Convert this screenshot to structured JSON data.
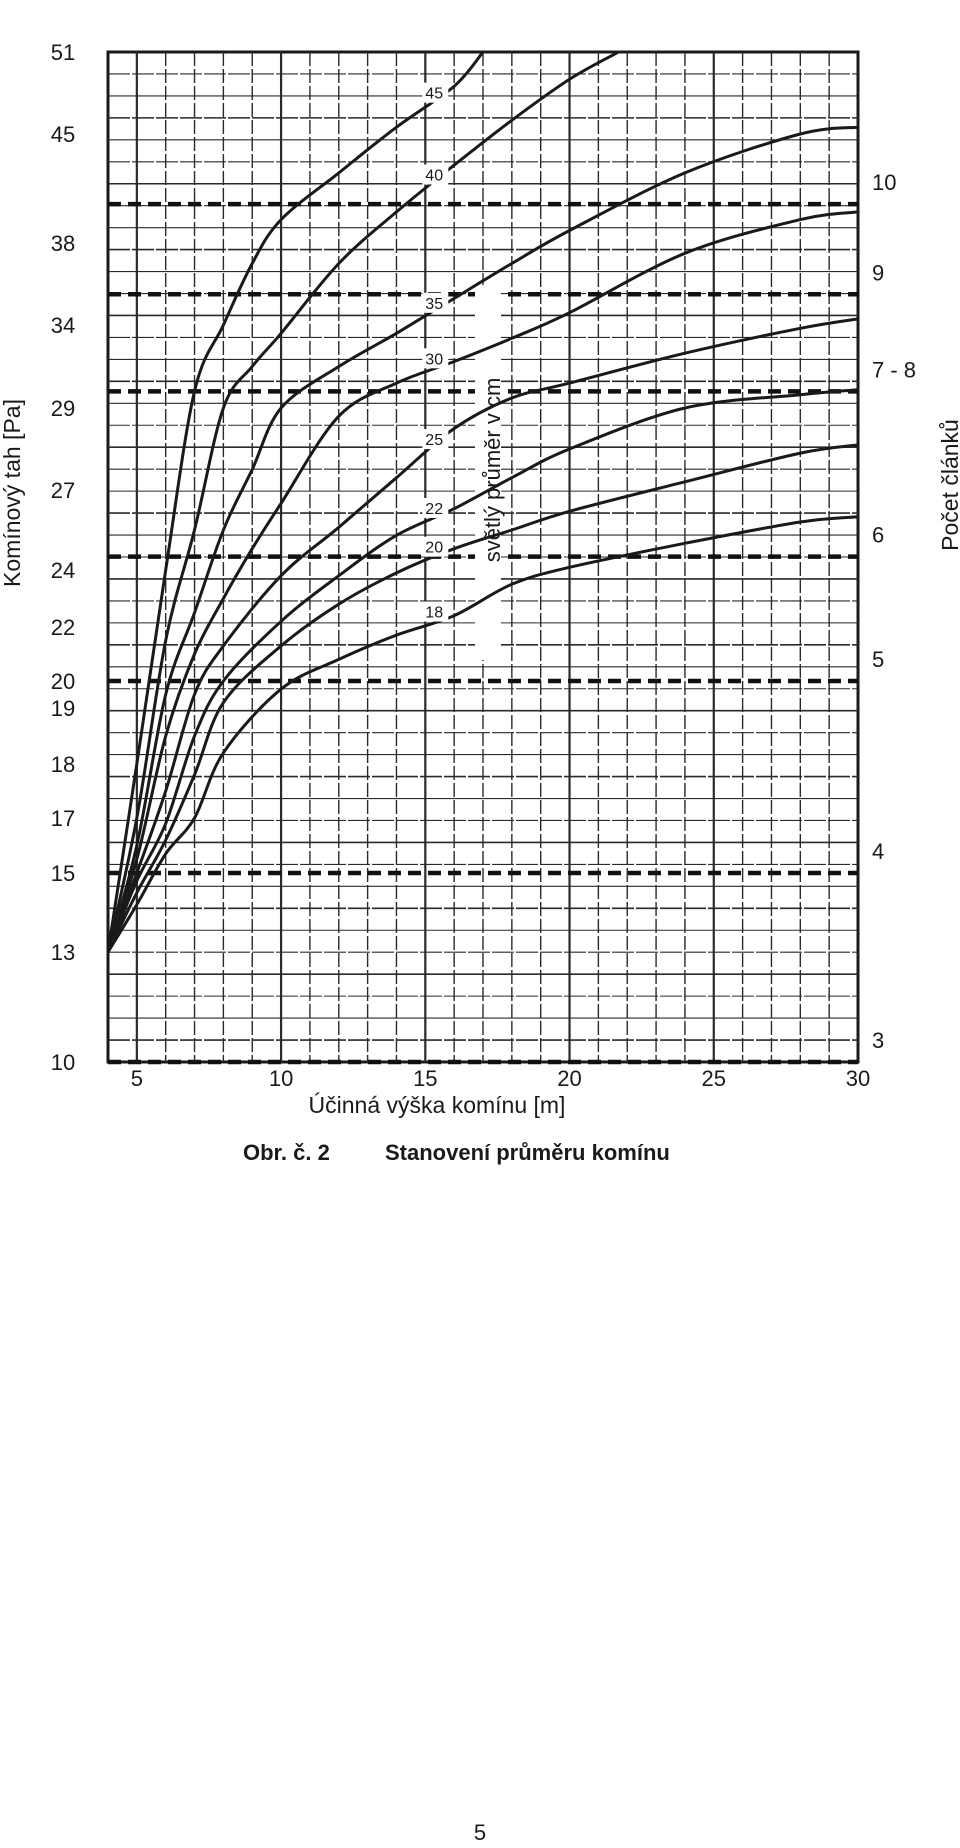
{
  "chart_data": {
    "type": "line",
    "xlabel": "Účinná výška komínu [m]",
    "ylabel": "Komínový tah [Pa]",
    "right_label": "Počet článků",
    "series_group_label": "světlý průměr v cm",
    "xlim": [
      4,
      30
    ],
    "x_ticks": [
      5,
      10,
      15,
      20,
      25,
      30
    ],
    "y_ticks": [
      10,
      13,
      15,
      17,
      18,
      19,
      20,
      22,
      24,
      27,
      29,
      34,
      38,
      45,
      51
    ],
    "grid": true,
    "series": [
      {
        "name": "45",
        "points": [
          [
            4,
            13
          ],
          [
            5,
            18
          ],
          [
            6,
            24
          ],
          [
            7,
            30
          ],
          [
            8,
            34
          ],
          [
            9,
            37
          ],
          [
            10,
            39.5
          ],
          [
            12,
            42.5
          ],
          [
            14,
            45.5
          ],
          [
            16,
            48.5
          ],
          [
            17,
            51
          ]
        ]
      },
      {
        "name": "40",
        "points": [
          [
            4,
            13
          ],
          [
            5,
            17
          ],
          [
            6,
            21.5
          ],
          [
            7,
            25.5
          ],
          [
            8,
            29
          ],
          [
            9,
            31.5
          ],
          [
            10,
            33.5
          ],
          [
            12,
            37
          ],
          [
            14,
            40
          ],
          [
            16,
            43
          ],
          [
            18,
            46
          ],
          [
            20,
            49
          ],
          [
            21.7,
            51
          ]
        ]
      },
      {
        "name": "35",
        "points": [
          [
            4,
            13
          ],
          [
            5,
            16
          ],
          [
            6,
            19.5
          ],
          [
            7,
            22.5
          ],
          [
            8,
            25.5
          ],
          [
            9,
            27.5
          ],
          [
            10,
            29
          ],
          [
            12,
            31.5
          ],
          [
            14,
            33.5
          ],
          [
            16,
            35.3
          ],
          [
            18,
            37
          ],
          [
            20,
            38.8
          ],
          [
            24,
            42.5
          ],
          [
            28,
            45
          ],
          [
            30,
            45.5
          ]
        ]
      },
      {
        "name": "30",
        "points": [
          [
            4,
            13
          ],
          [
            5,
            15.5
          ],
          [
            6,
            18.5
          ],
          [
            7,
            21
          ],
          [
            8,
            23
          ],
          [
            9,
            24.8
          ],
          [
            10,
            26.5
          ],
          [
            12,
            28.8
          ],
          [
            14,
            30.5
          ],
          [
            16,
            31.8
          ],
          [
            18,
            33.2
          ],
          [
            20,
            34.6
          ],
          [
            24,
            37.5
          ],
          [
            28,
            39.5
          ],
          [
            30,
            40
          ]
        ]
      },
      {
        "name": "25",
        "points": [
          [
            4,
            13
          ],
          [
            5,
            15
          ],
          [
            6,
            17.5
          ],
          [
            7,
            19.5
          ],
          [
            8,
            21.3
          ],
          [
            10,
            23.8
          ],
          [
            12,
            25.6
          ],
          [
            14,
            27.3
          ],
          [
            16,
            28.5
          ],
          [
            18,
            29.6
          ],
          [
            20,
            30.5
          ],
          [
            24,
            32.3
          ],
          [
            28,
            33.8
          ],
          [
            30,
            34.3
          ]
        ]
      },
      {
        "name": "22",
        "points": [
          [
            4,
            13
          ],
          [
            5,
            14.8
          ],
          [
            6,
            16.8
          ],
          [
            7,
            18.5
          ],
          [
            8,
            20
          ],
          [
            10,
            22.2
          ],
          [
            12,
            23.8
          ],
          [
            14,
            25.3
          ],
          [
            16,
            26.3
          ],
          [
            18,
            27.3
          ],
          [
            20,
            28
          ],
          [
            24,
            29
          ],
          [
            28,
            29.8
          ],
          [
            30,
            30.1
          ]
        ]
      },
      {
        "name": "20",
        "points": [
          [
            4,
            13
          ],
          [
            5,
            14.5
          ],
          [
            6,
            16.2
          ],
          [
            7,
            17.8
          ],
          [
            8,
            19.2
          ],
          [
            10,
            21.3
          ],
          [
            12,
            22.8
          ],
          [
            14,
            23.9
          ],
          [
            16,
            24.8
          ],
          [
            18,
            25.5
          ],
          [
            20,
            26.2
          ],
          [
            24,
            27.2
          ],
          [
            28,
            27.9
          ],
          [
            30,
            28.1
          ]
        ]
      },
      {
        "name": "18",
        "points": [
          [
            4,
            13
          ],
          [
            5,
            14.2
          ],
          [
            6,
            15.7
          ],
          [
            7,
            17
          ],
          [
            8,
            18.2
          ],
          [
            10,
            19.7
          ],
          [
            12,
            20.8
          ],
          [
            14,
            21.7
          ],
          [
            16,
            22.4
          ],
          [
            18,
            23.5
          ],
          [
            20,
            24.1
          ],
          [
            24,
            25
          ],
          [
            28,
            25.8
          ],
          [
            30,
            26
          ]
        ]
      }
    ],
    "reference_lines": [
      {
        "label": "3",
        "y": 10
      },
      {
        "label": "4",
        "y": 15
      },
      {
        "label": "5",
        "y": 20
      },
      {
        "label": "6",
        "y": 24.5
      },
      {
        "label": "7 - 8",
        "y": 30
      },
      {
        "label": "9",
        "y": 35.5
      },
      {
        "label": "10",
        "y": 40.5
      }
    ]
  },
  "caption": {
    "number": "Obr. č. 2",
    "title": "Stanovení průměru komínu"
  },
  "page_number": "5"
}
